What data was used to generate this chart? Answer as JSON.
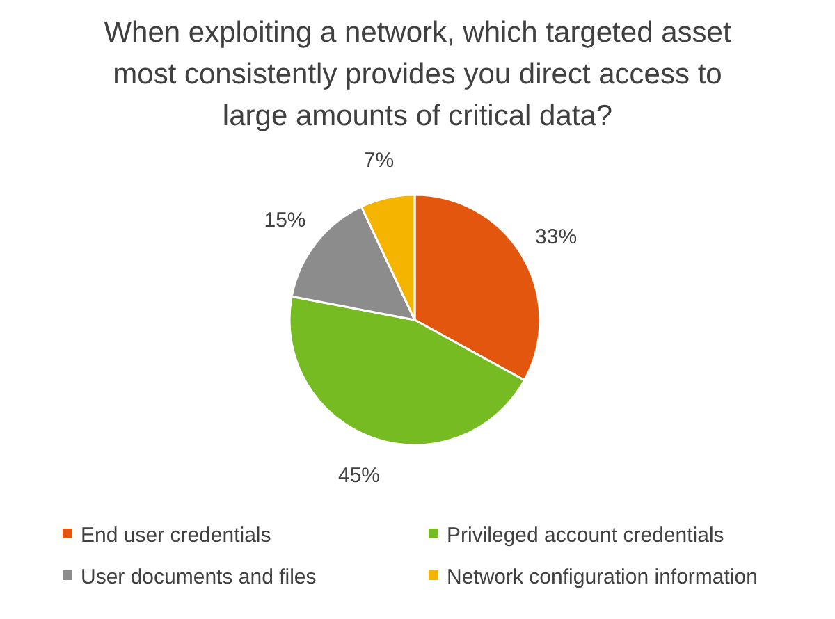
{
  "chart_data": {
    "type": "pie",
    "title": "When exploiting a network, which targeted asset most consistently provides you direct access to large amounts of critical data?",
    "categories": [
      "End user credentials",
      "Privileged account credentials",
      "User documents and files",
      "Network configuration information"
    ],
    "values": [
      33,
      45,
      15,
      7
    ],
    "colors": [
      "#e2560e",
      "#76bb22",
      "#8c8c8c",
      "#f5b400"
    ],
    "value_labels": [
      "33%",
      "45%",
      "15%",
      "7%"
    ],
    "legend": "bottom"
  }
}
